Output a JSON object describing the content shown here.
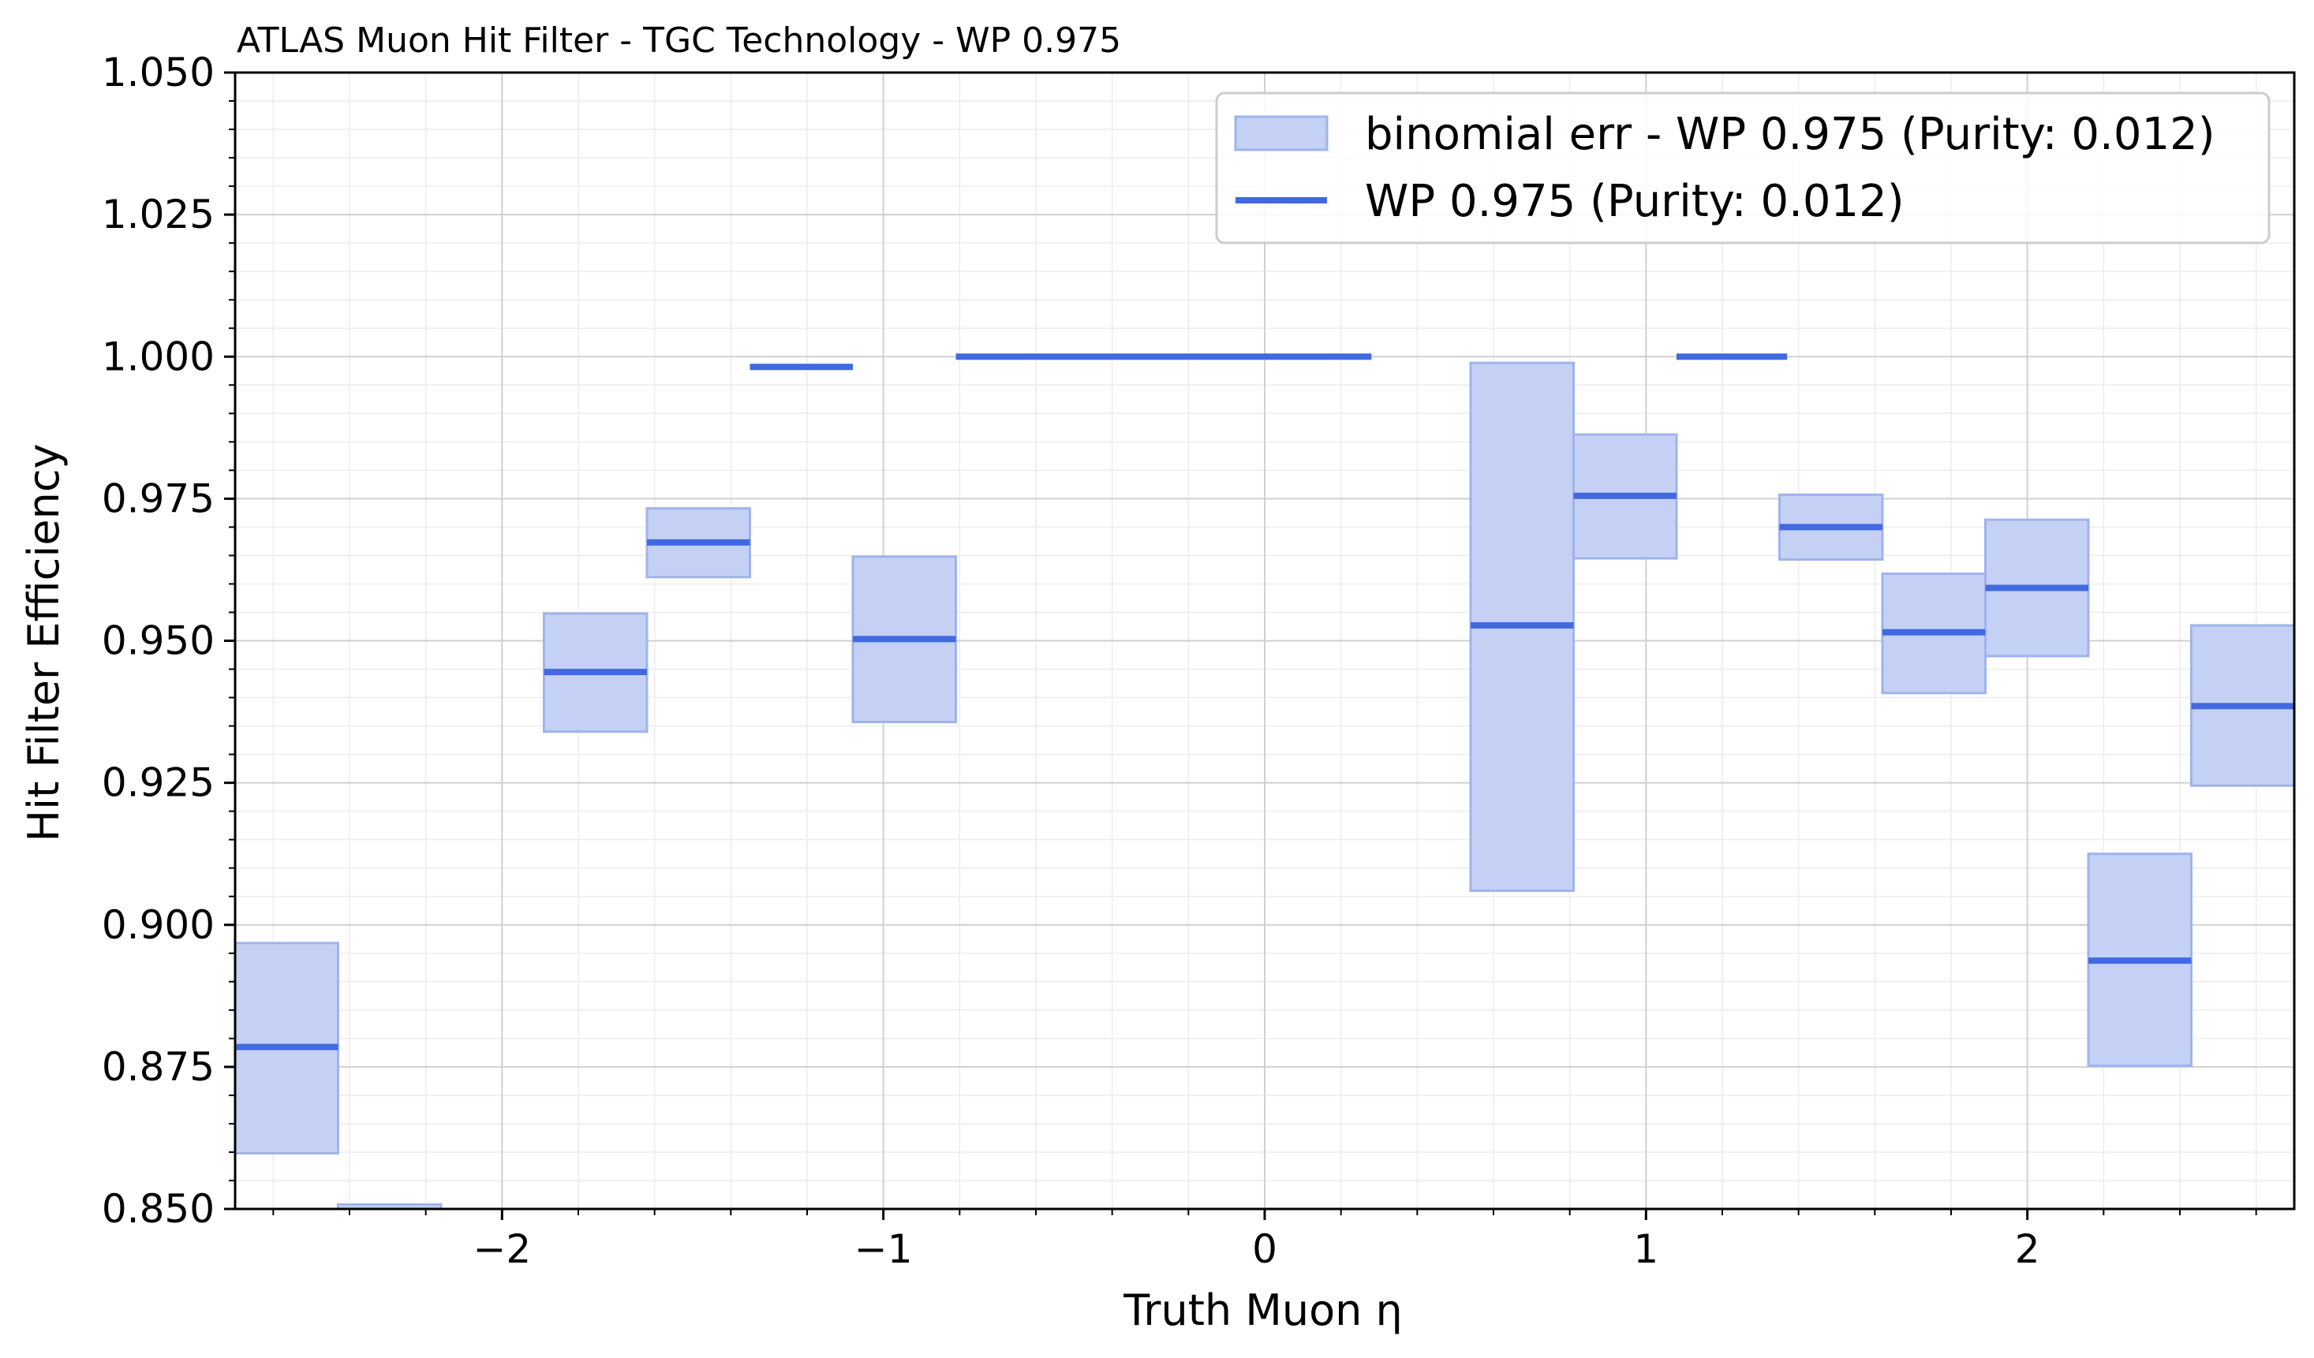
{
  "chart_data": {
    "type": "bar",
    "title": "ATLAS Muon Hit Filter - TGC Technology - WP 0.975",
    "xlabel": "Truth Muon η",
    "ylabel": "Hit Filter Efficiency",
    "xlim": [
      -2.7,
      2.7
    ],
    "ylim": [
      0.85,
      1.05
    ],
    "xticks": [
      -2,
      -1,
      0,
      1,
      2
    ],
    "xtick_labels": [
      "−2",
      "−1",
      "0",
      "1",
      "2"
    ],
    "yticks": [
      0.85,
      0.875,
      0.9,
      0.925,
      0.95,
      0.975,
      1.0,
      1.025,
      1.05
    ],
    "ytick_labels": [
      "0.850",
      "0.875",
      "0.900",
      "0.925",
      "0.950",
      "0.975",
      "1.000",
      "1.025",
      "1.050"
    ],
    "grid": true,
    "legend_position": "top-right",
    "series": [
      {
        "name": "binomial err - WP 0.975 (Purity: 0.012)",
        "kind": "error-box"
      },
      {
        "name": "WP 0.975 (Purity: 0.012)",
        "kind": "step"
      }
    ],
    "bins": [
      {
        "x_low": -2.7,
        "x_high": -2.43,
        "value": 0.8785,
        "err_low": 0.8598,
        "err_high": 0.8968
      },
      {
        "x_low": -2.43,
        "x_high": -2.16,
        "value": 0.8495,
        "err_low": 0.8465,
        "err_high": 0.8508
      },
      {
        "x_low": -1.89,
        "x_high": -1.62,
        "value": 0.9445,
        "err_low": 0.934,
        "err_high": 0.9548
      },
      {
        "x_low": -1.62,
        "x_high": -1.35,
        "value": 0.9673,
        "err_low": 0.9612,
        "err_high": 0.9733
      },
      {
        "x_low": -1.35,
        "x_high": -1.08,
        "value": 0.9982,
        "err_low": 0.9982,
        "err_high": 0.9982
      },
      {
        "x_low": -1.08,
        "x_high": -0.81,
        "value": 0.9503,
        "err_low": 0.9357,
        "err_high": 0.9648
      },
      {
        "x_low": -0.81,
        "x_high": 0.28,
        "value": 1.0,
        "err_low": 1.0,
        "err_high": 1.0
      },
      {
        "x_low": 0.54,
        "x_high": 0.81,
        "value": 0.9527,
        "err_low": 0.906,
        "err_high": 0.9989
      },
      {
        "x_low": 0.81,
        "x_high": 1.08,
        "value": 0.9755,
        "err_low": 0.9645,
        "err_high": 0.9863
      },
      {
        "x_low": 1.08,
        "x_high": 1.37,
        "value": 1.0,
        "err_low": 1.0,
        "err_high": 1.0
      },
      {
        "x_low": 1.35,
        "x_high": 1.62,
        "value": 0.97,
        "err_low": 0.9643,
        "err_high": 0.9757
      },
      {
        "x_low": 1.62,
        "x_high": 1.89,
        "value": 0.9515,
        "err_low": 0.9408,
        "err_high": 0.9618
      },
      {
        "x_low": 1.89,
        "x_high": 2.16,
        "value": 0.9593,
        "err_low": 0.9473,
        "err_high": 0.9713
      },
      {
        "x_low": 2.16,
        "x_high": 2.43,
        "value": 0.8937,
        "err_low": 0.8752,
        "err_high": 0.9125
      },
      {
        "x_low": 2.43,
        "x_high": 2.7,
        "value": 0.9385,
        "err_low": 0.9245,
        "err_high": 0.9527
      }
    ],
    "colors": {
      "line": "#4169e1",
      "fill": "#c5d1f4",
      "fill_edge": "#9fb3ec",
      "grid": "#d0d0d0"
    }
  }
}
